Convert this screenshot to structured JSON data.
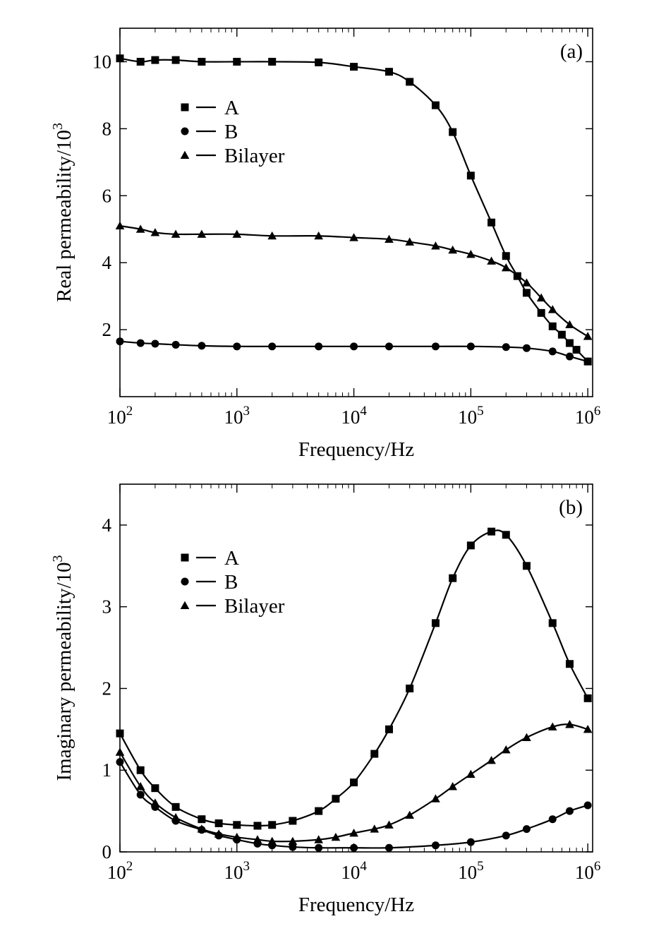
{
  "chart_data": [
    {
      "type": "line",
      "panel_label": "(a)",
      "xlabel": "Frequency/Hz",
      "ylabel": "Real permeability/10",
      "ylabel_exp": "3",
      "x_scale": "log",
      "xlim": [
        100,
        1100000
      ],
      "ylim": [
        0,
        11
      ],
      "x_ticks": [
        {
          "value": 100,
          "base": "10",
          "exp": "2"
        },
        {
          "value": 1000,
          "base": "10",
          "exp": "3"
        },
        {
          "value": 10000,
          "base": "10",
          "exp": "4"
        },
        {
          "value": 100000,
          "base": "10",
          "exp": "5"
        },
        {
          "value": 1000000,
          "base": "10",
          "exp": "6"
        }
      ],
      "y_ticks": [
        {
          "value": 2,
          "label": "2"
        },
        {
          "value": 4,
          "label": "4"
        },
        {
          "value": 6,
          "label": "6"
        },
        {
          "value": 8,
          "label": "8"
        },
        {
          "value": 10,
          "label": "10"
        }
      ],
      "legend_position": "upper-left",
      "series": [
        {
          "name": "A",
          "marker": "square",
          "x": [
            100,
            150,
            200,
            300,
            500,
            1000,
            2000,
            5000,
            10000,
            20000,
            30000,
            50000,
            70000,
            100000,
            150000,
            200000,
            250000,
            300000,
            400000,
            500000,
            600000,
            700000,
            800000,
            1000000
          ],
          "y": [
            10.1,
            10.0,
            10.05,
            10.05,
            10.0,
            10.0,
            10.0,
            9.98,
            9.85,
            9.7,
            9.4,
            8.7,
            7.9,
            6.6,
            5.2,
            4.2,
            3.6,
            3.1,
            2.5,
            2.1,
            1.85,
            1.6,
            1.4,
            1.05
          ]
        },
        {
          "name": "B",
          "marker": "circle",
          "x": [
            100,
            150,
            200,
            300,
            500,
            1000,
            2000,
            5000,
            10000,
            20000,
            50000,
            100000,
            200000,
            300000,
            500000,
            700000,
            1000000
          ],
          "y": [
            1.65,
            1.6,
            1.58,
            1.55,
            1.52,
            1.5,
            1.5,
            1.5,
            1.5,
            1.5,
            1.5,
            1.5,
            1.48,
            1.45,
            1.35,
            1.2,
            1.05
          ]
        },
        {
          "name": "Bilayer",
          "marker": "triangle",
          "x": [
            100,
            150,
            200,
            300,
            500,
            1000,
            2000,
            5000,
            10000,
            20000,
            30000,
            50000,
            70000,
            100000,
            150000,
            200000,
            300000,
            400000,
            500000,
            700000,
            1000000
          ],
          "y": [
            5.1,
            5.0,
            4.9,
            4.85,
            4.85,
            4.85,
            4.8,
            4.8,
            4.75,
            4.7,
            4.62,
            4.5,
            4.38,
            4.25,
            4.05,
            3.85,
            3.4,
            2.95,
            2.6,
            2.15,
            1.8
          ]
        }
      ]
    },
    {
      "type": "line",
      "panel_label": "(b)",
      "xlabel": "Frequency/Hz",
      "ylabel": "Imaginary permeability/10",
      "ylabel_exp": "3",
      "x_scale": "log",
      "xlim": [
        100,
        1100000
      ],
      "ylim": [
        0,
        4.5
      ],
      "x_ticks": [
        {
          "value": 100,
          "base": "10",
          "exp": "2"
        },
        {
          "value": 1000,
          "base": "10",
          "exp": "3"
        },
        {
          "value": 10000,
          "base": "10",
          "exp": "4"
        },
        {
          "value": 100000,
          "base": "10",
          "exp": "5"
        },
        {
          "value": 1000000,
          "base": "10",
          "exp": "6"
        }
      ],
      "y_ticks": [
        {
          "value": 0,
          "label": "0"
        },
        {
          "value": 1,
          "label": "1"
        },
        {
          "value": 2,
          "label": "2"
        },
        {
          "value": 3,
          "label": "3"
        },
        {
          "value": 4,
          "label": "4"
        }
      ],
      "legend_position": "upper-left",
      "series": [
        {
          "name": "A",
          "marker": "square",
          "x": [
            100,
            150,
            200,
            300,
            500,
            700,
            1000,
            1500,
            2000,
            3000,
            5000,
            7000,
            10000,
            15000,
            20000,
            30000,
            50000,
            70000,
            100000,
            150000,
            200000,
            300000,
            500000,
            700000,
            1000000
          ],
          "y": [
            1.45,
            1.0,
            0.78,
            0.55,
            0.4,
            0.35,
            0.33,
            0.32,
            0.33,
            0.38,
            0.5,
            0.65,
            0.85,
            1.2,
            1.5,
            2.0,
            2.8,
            3.35,
            3.75,
            3.92,
            3.88,
            3.5,
            2.8,
            2.3,
            1.88
          ]
        },
        {
          "name": "B",
          "marker": "circle",
          "x": [
            100,
            150,
            200,
            300,
            500,
            700,
            1000,
            1500,
            2000,
            3000,
            5000,
            10000,
            20000,
            50000,
            100000,
            200000,
            300000,
            500000,
            700000,
            1000000
          ],
          "y": [
            1.1,
            0.7,
            0.55,
            0.38,
            0.27,
            0.2,
            0.15,
            0.1,
            0.08,
            0.06,
            0.05,
            0.05,
            0.05,
            0.08,
            0.12,
            0.2,
            0.28,
            0.4,
            0.5,
            0.57
          ]
        },
        {
          "name": "Bilayer",
          "marker": "triangle",
          "x": [
            100,
            150,
            200,
            300,
            500,
            700,
            1000,
            1500,
            2000,
            3000,
            5000,
            7000,
            10000,
            15000,
            20000,
            30000,
            50000,
            70000,
            100000,
            150000,
            200000,
            300000,
            500000,
            700000,
            1000000
          ],
          "y": [
            1.22,
            0.8,
            0.6,
            0.42,
            0.28,
            0.22,
            0.18,
            0.15,
            0.13,
            0.13,
            0.15,
            0.18,
            0.23,
            0.28,
            0.33,
            0.45,
            0.65,
            0.8,
            0.95,
            1.12,
            1.25,
            1.4,
            1.53,
            1.56,
            1.5
          ]
        }
      ]
    }
  ]
}
